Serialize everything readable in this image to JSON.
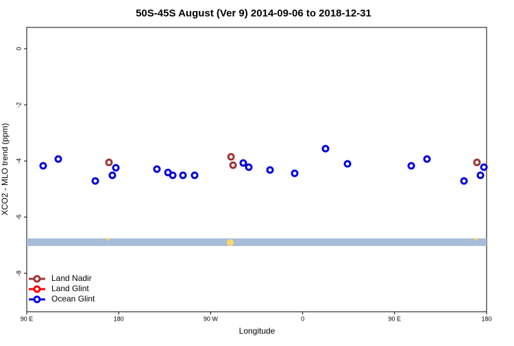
{
  "chart_data": {
    "type": "scatter",
    "title": "50S-45S August (Ver 9)   2014-09-06 to 2018-12-31",
    "x_label": "Longitude",
    "y_label": "XCO2 - MLO trend (ppm)",
    "xlim": [
      90,
      540
    ],
    "ylim": [
      -9.37,
      0.76
    ],
    "xticks": [
      {
        "value": 90,
        "label": "90 E"
      },
      180,
      {
        "value": 270,
        "label": "90 W"
      },
      {
        "value": 360,
        "label": "0"
      },
      {
        "value": 450,
        "label": "90 E"
      },
      {
        "value": 540,
        "label": "180"
      }
    ],
    "yticks": [
      0,
      -2,
      -4,
      -6,
      -8
    ],
    "legend": "bottom-left",
    "series": [
      {
        "name": "Land Nadir",
        "color": "#a03232",
        "x": [
          170.5,
          289.9,
          291.9,
          530.6
        ],
        "values": [
          -4.05,
          -3.85,
          -4.15,
          -4.05
        ]
      },
      {
        "name": "Land Glint",
        "color": "#ff0000",
        "x": [],
        "values": []
      },
      {
        "name": "Ocean Glint",
        "color": "#0000dd",
        "x": [
          106.1,
          120.9,
          157.1,
          173.8,
          177.2,
          217.4,
          228.2,
          232.9,
          242.9,
          254.3,
          301.9,
          307.3,
          328.1,
          352.2,
          382.4,
          403.9,
          466.3,
          481.7,
          517.9,
          534.0,
          537.4
        ],
        "values": [
          -4.17,
          -3.93,
          -4.71,
          -4.51,
          -4.24,
          -4.29,
          -4.41,
          -4.51,
          -4.51,
          -4.51,
          -4.07,
          -4.22,
          -4.32,
          -4.44,
          -3.56,
          -4.1,
          -4.17,
          -3.93,
          -4.71,
          -4.51,
          -4.22
        ]
      }
    ]
  }
}
